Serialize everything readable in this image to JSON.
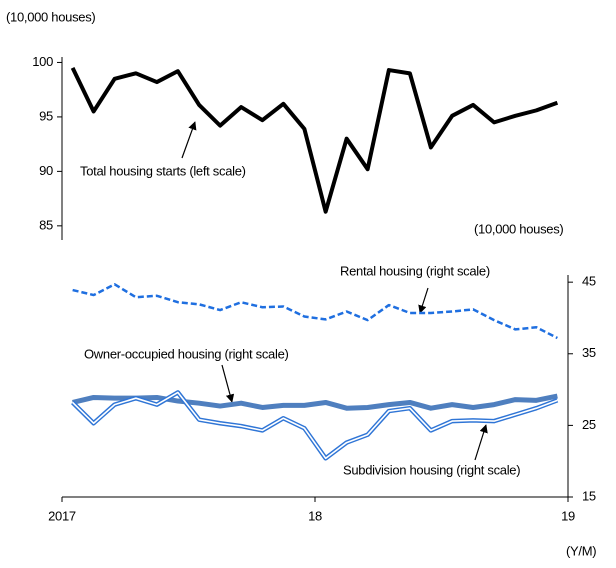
{
  "chart_data": {
    "type": "line",
    "y_label": "(10,000 houses)",
    "y2_label": "(10,000 houses)",
    "x_label": "(Y/M)",
    "x": [
      2017.042,
      2017.125,
      2017.208,
      2017.292,
      2017.375,
      2017.458,
      2017.542,
      2017.625,
      2017.708,
      2017.792,
      2017.875,
      2017.958,
      2018.042,
      2018.125,
      2018.208,
      2018.292,
      2018.375,
      2018.458,
      2018.542,
      2018.625,
      2018.708,
      2018.792,
      2018.875,
      2018.958
    ],
    "xlim": [
      2017,
      2019
    ],
    "xticks": [
      {
        "value": 2017,
        "label": "2017"
      },
      {
        "value": 2018,
        "label": "18"
      },
      {
        "value": 2019,
        "label": "19"
      }
    ],
    "ylim": [
      83.7,
      100.5
    ],
    "yticks": [
      85,
      90,
      95,
      100
    ],
    "y2lim": [
      15,
      46
    ],
    "y2ticks": [
      15,
      25,
      35,
      45
    ],
    "series": [
      {
        "name": "Total housing starts (left scale)",
        "color": "#000000",
        "style": "thick",
        "values": [
          99.5,
          95.5,
          98.5,
          99.0,
          98.2,
          99.2,
          96.1,
          94.2,
          95.9,
          94.7,
          96.2,
          93.9,
          86.3,
          93.0,
          90.2,
          99.3,
          99.0,
          92.2,
          95.1,
          96.1,
          94.5,
          95.1,
          95.6,
          96.3
        ]
      },
      {
        "name": "Rental housing (right scale)",
        "color": "#1f6fe0",
        "style": "dashed",
        "axis": "y2",
        "values": [
          43.9,
          43.2,
          44.7,
          42.9,
          43.1,
          42.2,
          41.9,
          41.1,
          42.2,
          41.5,
          41.6,
          40.2,
          39.8,
          40.9,
          39.7,
          41.8,
          40.7,
          40.7,
          40.9,
          41.2,
          39.7,
          38.4,
          38.7,
          37.2
        ]
      },
      {
        "name": "Owner-occupied housing (right scale)",
        "color": "#4f7fbf",
        "style": "thick",
        "axis": "y2",
        "values": [
          28.2,
          28.9,
          28.8,
          28.8,
          28.9,
          28.4,
          28.1,
          27.7,
          28.1,
          27.5,
          27.8,
          27.8,
          28.2,
          27.4,
          27.5,
          27.9,
          28.2,
          27.4,
          27.9,
          27.5,
          27.9,
          28.6,
          28.5,
          29.1
        ]
      },
      {
        "name": "Subdivision housing (right scale)",
        "color": "#2f75d6",
        "style": "double",
        "axis": "y2",
        "values": [
          28.2,
          25.3,
          27.9,
          28.8,
          27.9,
          29.6,
          25.8,
          25.3,
          24.9,
          24.3,
          26.0,
          24.6,
          20.4,
          22.6,
          23.7,
          27.0,
          27.4,
          24.3,
          25.6,
          25.7,
          25.6,
          26.5,
          27.4,
          28.5
        ]
      }
    ]
  }
}
